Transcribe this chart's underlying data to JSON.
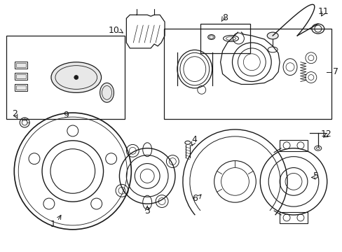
{
  "background_color": "#ffffff",
  "fig_width": 4.89,
  "fig_height": 3.6,
  "dpi": 100,
  "gray": "#1a1a1a",
  "light_gray": "#aaaaaa",
  "fill_gray": "#e8e8e8"
}
